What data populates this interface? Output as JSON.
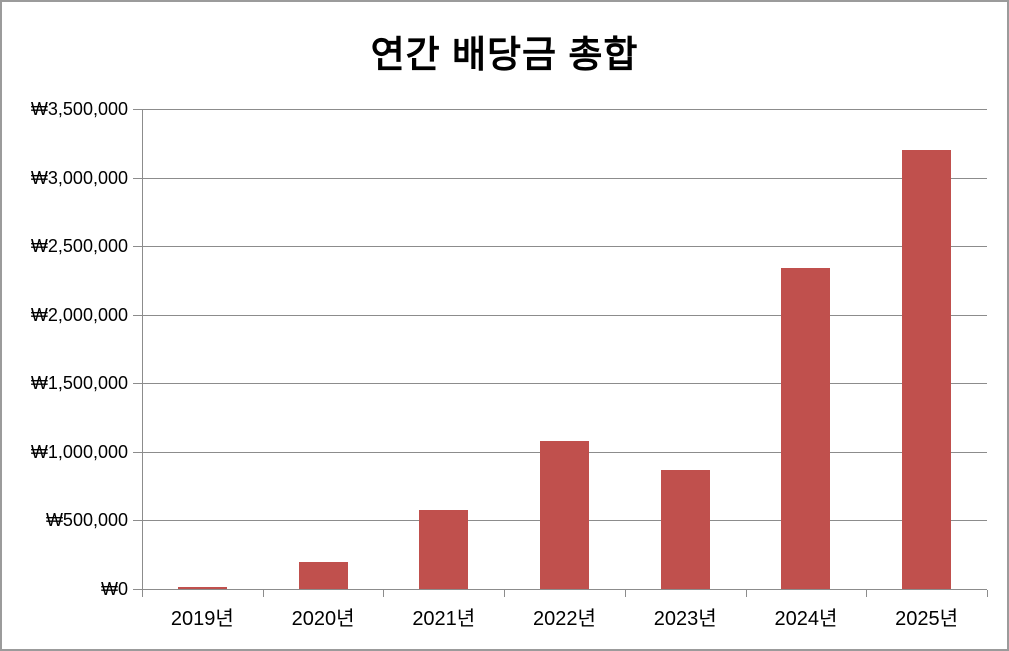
{
  "window": {
    "background_color": "#ffffff",
    "border_color": "#9b9b9b"
  },
  "chart_data": {
    "type": "bar",
    "title": "연간 배당금 총합",
    "categories": [
      "2019년",
      "2020년",
      "2021년",
      "2022년",
      "2023년",
      "2024년",
      "2025년"
    ],
    "values": [
      15000,
      200000,
      575000,
      1080000,
      870000,
      2340000,
      3200000
    ],
    "xlabel": "",
    "ylabel": "",
    "ylim": [
      0,
      3500000
    ],
    "y_tick_values": [
      0,
      500000,
      1000000,
      1500000,
      2000000,
      2500000,
      3000000,
      3500000
    ],
    "y_tick_labels": [
      "₩0",
      "₩500,000",
      "₩1,000,000",
      "₩1,500,000",
      "₩2,000,000",
      "₩2,500,000",
      "₩3,000,000",
      "₩3,500,000"
    ],
    "grid": true,
    "legend_position": "none",
    "colors": {
      "bar": "#c0504d",
      "axis": "#8c8c8c",
      "gridline": "#8c8c8c",
      "text": "#000000"
    }
  }
}
